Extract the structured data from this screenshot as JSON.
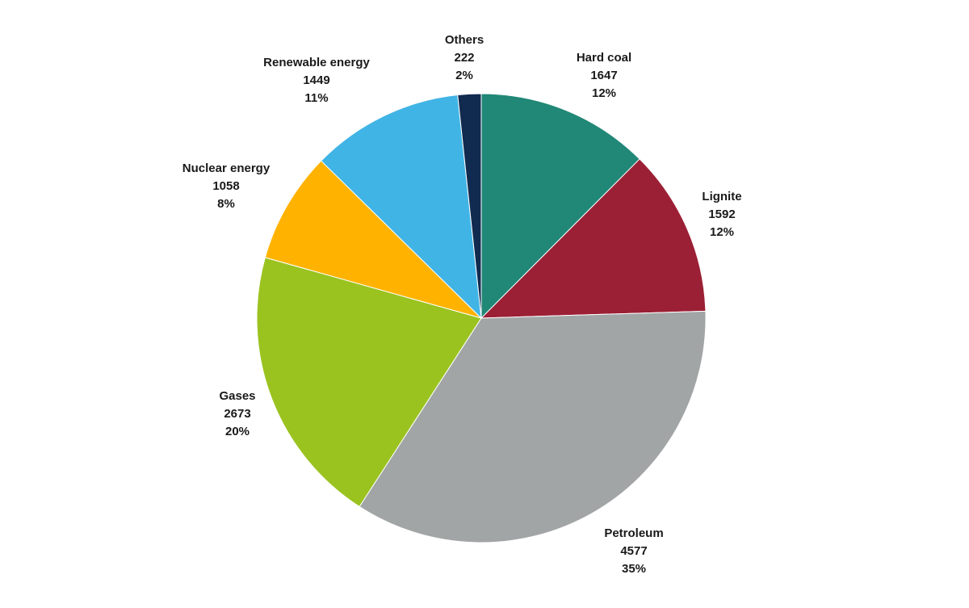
{
  "chart_data": {
    "type": "pie",
    "start_at": "12 o'clock",
    "direction": "clockwise",
    "slices": [
      {
        "label": "Hard coal",
        "value": 1647,
        "percent": "12%",
        "color": "#218776"
      },
      {
        "label": "Lignite",
        "value": 1592,
        "percent": "12%",
        "color": "#9b2035"
      },
      {
        "label": "Petroleum",
        "value": 4577,
        "percent": "35%",
        "color": "#a1a5a5"
      },
      {
        "label": "Gases",
        "value": 2673,
        "percent": "20%",
        "color": "#9ac320"
      },
      {
        "label": "Nuclear energy",
        "value": 1058,
        "percent": "8%",
        "color": "#ffb300"
      },
      {
        "label": "Renewable energy",
        "value": 1449,
        "percent": "11%",
        "color": "#41b4e6"
      },
      {
        "label": "Others",
        "value": 222,
        "percent": "2%",
        "color": "#112a4f"
      }
    ]
  }
}
